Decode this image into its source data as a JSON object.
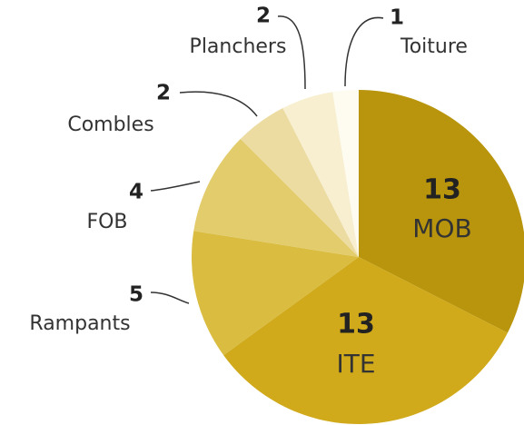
{
  "chart_data": {
    "type": "pie",
    "categories": [
      "MOB",
      "ITE",
      "Rampants",
      "FOB",
      "Combles",
      "Planchers",
      "Toiture"
    ],
    "values": [
      13,
      13,
      5,
      4,
      2,
      2,
      1
    ],
    "colors": [
      "#b8950c",
      "#d0aa1a",
      "#d9bc40",
      "#e3cc6c",
      "#ecdca2",
      "#f7efd0",
      "#fefbf1"
    ]
  }
}
